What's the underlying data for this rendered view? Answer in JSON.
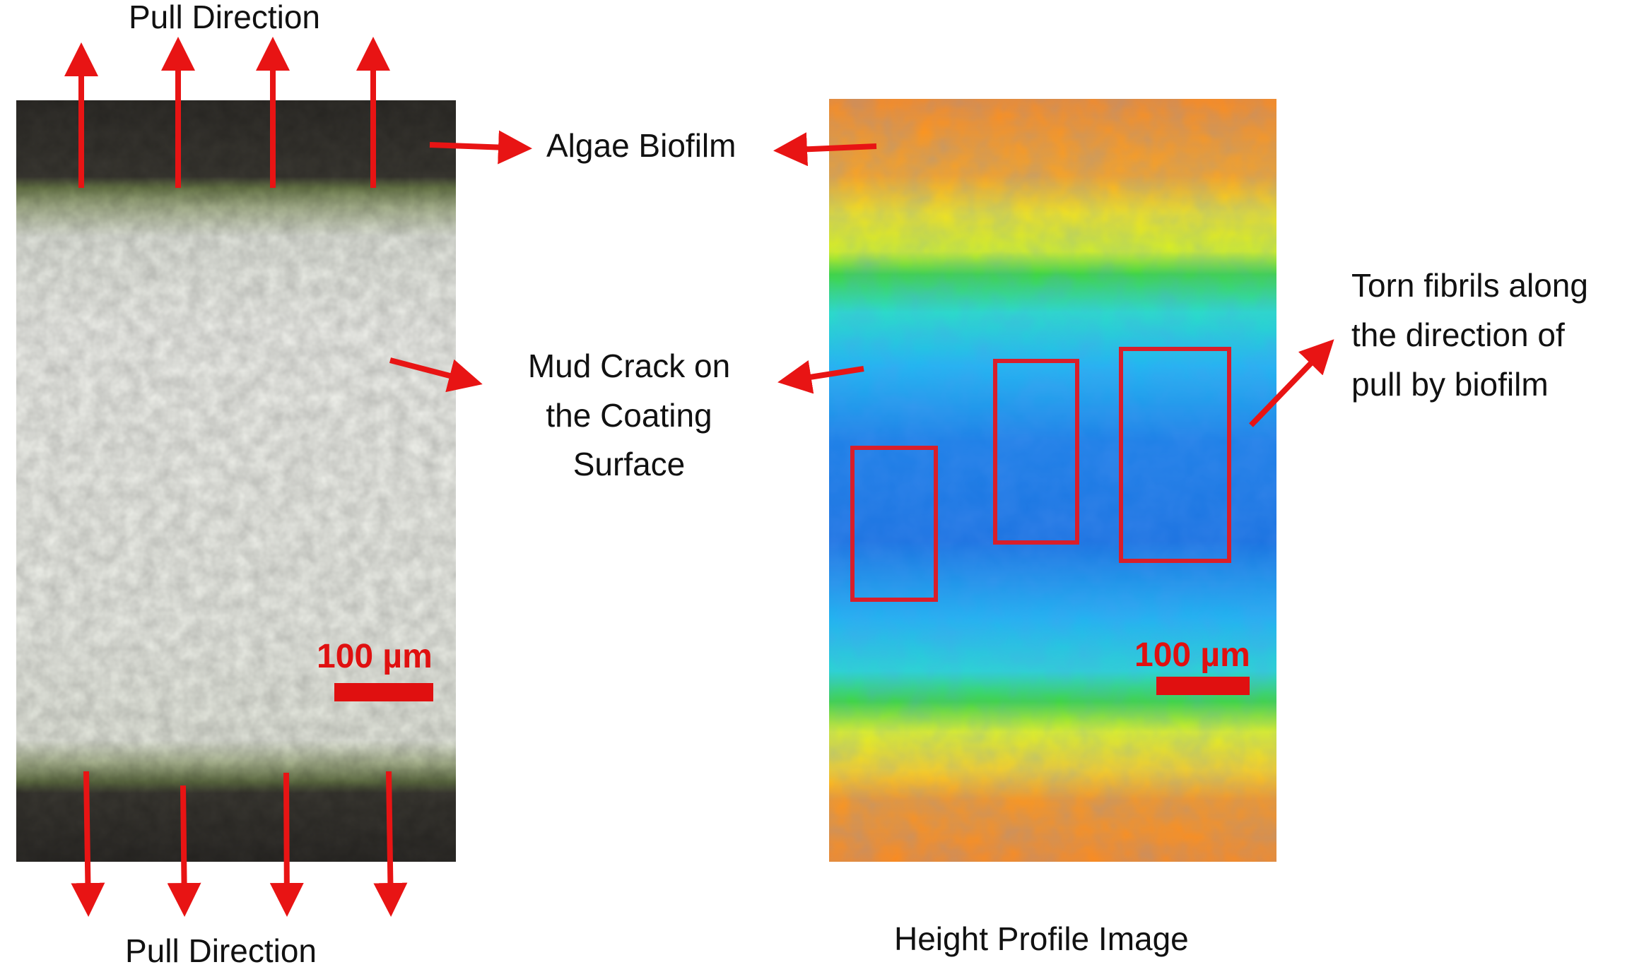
{
  "colors": {
    "arrow": "#e81414",
    "box": "#d91e2a",
    "scale": "#e01010",
    "text": "#111111"
  },
  "labels": {
    "pull_top": "Pull Direction",
    "pull_bottom": "Pull Direction",
    "algae_biofilm": "Algae Biofilm",
    "mud_crack": [
      "Mud Crack on",
      "the Coating",
      "Surface"
    ],
    "torn_fibrils": [
      "Torn fibrils along",
      "the direction of",
      "pull by biofilm"
    ],
    "height_profile": "Height Profile Image"
  },
  "scale_bars": {
    "left": "100 µm",
    "right": "100 µm"
  },
  "panels": {
    "left": "optical-micrograph",
    "right": "height-profile-heatmap"
  }
}
